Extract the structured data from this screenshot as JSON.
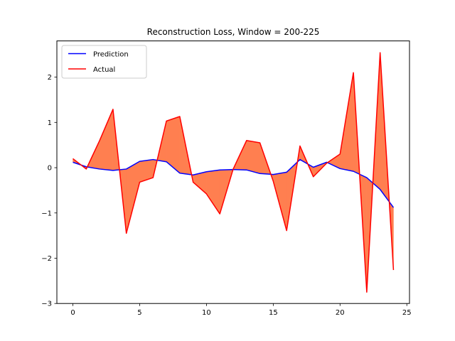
{
  "chart_data": {
    "type": "line",
    "title": "Reconstruction Loss, Window = 200-225",
    "xlabel": "",
    "ylabel": "",
    "xlim": [
      -1.2,
      25.2
    ],
    "ylim": [
      -3.0,
      2.8
    ],
    "x_ticks": [
      0,
      5,
      10,
      15,
      20,
      25
    ],
    "y_ticks": [
      -3,
      -2,
      -1,
      0,
      1,
      2
    ],
    "x_tick_labels": [
      "0",
      "5",
      "10",
      "15",
      "20",
      "25"
    ],
    "y_tick_labels": [
      "−3",
      "−2",
      "−1",
      "0",
      "1",
      "2"
    ],
    "grid": false,
    "legend_position": "top-left",
    "fill_between": {
      "series": [
        "Prediction",
        "Actual"
      ],
      "color": "#ff7f50"
    },
    "x": [
      0,
      1,
      2,
      3,
      4,
      5,
      6,
      7,
      8,
      9,
      10,
      11,
      12,
      13,
      14,
      15,
      16,
      17,
      18,
      19,
      20,
      21,
      22,
      23,
      24
    ],
    "series": [
      {
        "name": "Prediction",
        "color": "#0000ff",
        "values": [
          0.12,
          0.02,
          -0.03,
          -0.06,
          -0.03,
          0.14,
          0.18,
          0.13,
          -0.12,
          -0.16,
          -0.09,
          -0.05,
          -0.04,
          -0.05,
          -0.13,
          -0.15,
          -0.1,
          0.18,
          0.01,
          0.12,
          -0.02,
          -0.08,
          -0.22,
          -0.48,
          -0.88
        ]
      },
      {
        "name": "Actual",
        "color": "#ff0000",
        "values": [
          0.2,
          -0.03,
          0.6,
          1.29,
          -1.45,
          -0.32,
          -0.22,
          1.03,
          1.13,
          -0.32,
          -0.58,
          -1.02,
          -0.03,
          0.6,
          0.55,
          -0.3,
          -1.39,
          0.48,
          -0.2,
          0.1,
          0.3,
          2.1,
          -2.75,
          2.54,
          -2.26
        ]
      }
    ]
  }
}
